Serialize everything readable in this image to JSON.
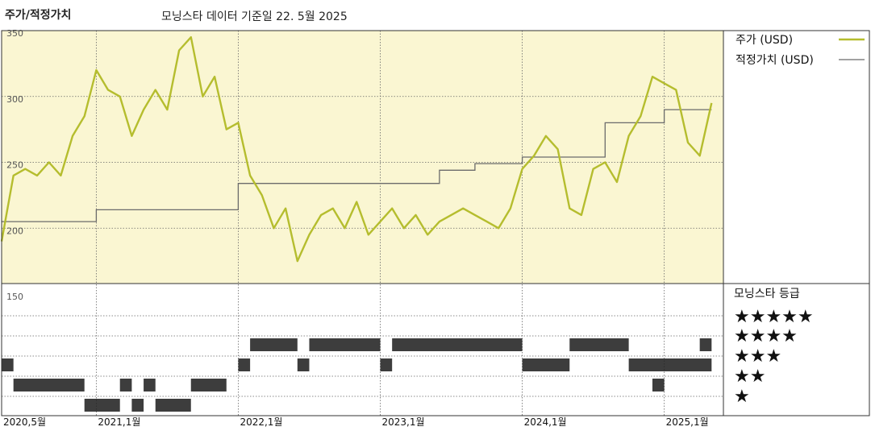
{
  "header": {
    "title": "주가/적정가치",
    "subtitle": "모닝스타 데이터 기준일 22. 5월 2025"
  },
  "legend": {
    "price_label": "주가 (USD)",
    "fair_label": "적정가치 (USD)",
    "price_color": "#b5bd2e",
    "fair_color": "#6b6b6b"
  },
  "rating_panel": {
    "title": "모닝스타 등급",
    "rows": [
      "★★★★★",
      "★★★★",
      "★★★",
      "★★",
      "★"
    ]
  },
  "colors": {
    "plot_bg": "#faf6d2",
    "bar": "#222222"
  },
  "chart_data": [
    {
      "type": "line",
      "y_ticks": [
        350,
        300,
        250,
        200,
        150
      ],
      "ylim": [
        150,
        350
      ],
      "x_ticks": [
        "2020,5월",
        "2021,1월",
        "2022,1월",
        "2023,1월",
        "2024,1월",
        "2025,1월"
      ],
      "xlim": [
        "2020-05",
        "2025-06"
      ],
      "grid": true,
      "legend_position": "right",
      "series": [
        {
          "name": "주가 (USD)",
          "x": [
            "2020-05",
            "2020-06",
            "2020-07",
            "2020-08",
            "2020-09",
            "2020-10",
            "2020-11",
            "2020-12",
            "2021-01",
            "2021-02",
            "2021-03",
            "2021-04",
            "2021-05",
            "2021-06",
            "2021-07",
            "2021-08",
            "2021-09",
            "2021-10",
            "2021-11",
            "2021-12",
            "2022-01",
            "2022-02",
            "2022-03",
            "2022-04",
            "2022-05",
            "2022-06",
            "2022-07",
            "2022-08",
            "2022-09",
            "2022-10",
            "2022-11",
            "2022-12",
            "2023-01",
            "2023-02",
            "2023-03",
            "2023-04",
            "2023-05",
            "2023-06",
            "2023-07",
            "2023-08",
            "2023-09",
            "2023-10",
            "2023-11",
            "2023-12",
            "2024-01",
            "2024-02",
            "2024-03",
            "2024-04",
            "2024-05",
            "2024-06",
            "2024-07",
            "2024-08",
            "2024-09",
            "2024-10",
            "2024-11",
            "2024-12",
            "2025-01",
            "2025-02",
            "2025-03",
            "2025-04",
            "2025-05"
          ],
          "values": [
            190,
            240,
            245,
            240,
            250,
            240,
            270,
            285,
            320,
            305,
            300,
            270,
            290,
            305,
            290,
            335,
            345,
            300,
            315,
            275,
            280,
            240,
            225,
            200,
            215,
            175,
            195,
            210,
            215,
            200,
            220,
            195,
            205,
            215,
            200,
            210,
            195,
            205,
            210,
            215,
            210,
            205,
            200,
            215,
            245,
            255,
            270,
            260,
            215,
            210,
            245,
            250,
            235,
            270,
            285,
            315,
            310,
            305,
            265,
            255,
            295
          ],
          "color": "#b5bd2e"
        },
        {
          "name": "적정가치 (USD)",
          "x": [
            "2020-05",
            "2020-12",
            "2021-01",
            "2021-12",
            "2022-01",
            "2023-01",
            "2023-05",
            "2023-06",
            "2023-08",
            "2023-09",
            "2023-12",
            "2024-01",
            "2024-07",
            "2024-08",
            "2024-10",
            "2024-11",
            "2025-01",
            "2025-05"
          ],
          "values": [
            205,
            205,
            214,
            214,
            234,
            234,
            234,
            244,
            244,
            249,
            249,
            254,
            254,
            280,
            280,
            280,
            290,
            290
          ],
          "color": "#6b6b6b"
        }
      ]
    },
    {
      "type": "heatmap",
      "title": "모닝스타 등급",
      "rating_levels": [
        5,
        4,
        3,
        2,
        1
      ],
      "periods": [
        {
          "rating": 3,
          "from": "2020-05",
          "to": "2020-06"
        },
        {
          "rating": 2,
          "from": "2020-06",
          "to": "2020-12"
        },
        {
          "rating": 1,
          "from": "2020-12",
          "to": "2021-03"
        },
        {
          "rating": 2,
          "from": "2021-03",
          "to": "2021-04"
        },
        {
          "rating": 1,
          "from": "2021-04",
          "to": "2021-05"
        },
        {
          "rating": 2,
          "from": "2021-05",
          "to": "2021-06"
        },
        {
          "rating": 1,
          "from": "2021-06",
          "to": "2021-09"
        },
        {
          "rating": 2,
          "from": "2021-09",
          "to": "2021-12"
        },
        {
          "rating": 3,
          "from": "2022-01",
          "to": "2022-02"
        },
        {
          "rating": 4,
          "from": "2022-02",
          "to": "2022-06"
        },
        {
          "rating": 3,
          "from": "2022-06",
          "to": "2022-07"
        },
        {
          "rating": 4,
          "from": "2022-07",
          "to": "2023-01"
        },
        {
          "rating": 3,
          "from": "2023-01",
          "to": "2023-02"
        },
        {
          "rating": 4,
          "from": "2023-02",
          "to": "2024-01"
        },
        {
          "rating": 3,
          "from": "2024-01",
          "to": "2024-05"
        },
        {
          "rating": 4,
          "from": "2024-05",
          "to": "2024-10"
        },
        {
          "rating": 3,
          "from": "2024-10",
          "to": "2025-05"
        },
        {
          "rating": 2,
          "from": "2024-12",
          "to": "2025-01"
        },
        {
          "rating": 4,
          "from": "2025-04",
          "to": "2025-05"
        }
      ]
    }
  ]
}
